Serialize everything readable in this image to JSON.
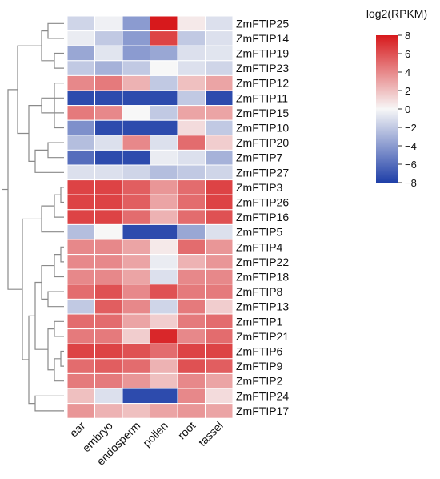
{
  "chart_data": {
    "type": "heatmap",
    "title": "",
    "color_scale": {
      "title": "log2(RPKM)",
      "range": [
        -8,
        8
      ],
      "ticks": [
        8,
        6,
        4,
        2,
        0,
        -2,
        -4,
        -6,
        -8
      ],
      "low_color": "#1f3fa8",
      "mid_color": "#f7f7f7",
      "high_color": "#d7191c"
    },
    "columns": [
      "ear",
      "embryo",
      "endosperm",
      "pollen",
      "root",
      "tassel"
    ],
    "rows": [
      "ZmFTIP25",
      "ZmFTIP14",
      "ZmFTIP19",
      "ZmFTIP23",
      "ZmFTIP12",
      "ZmFTIP11",
      "ZmFTIP15",
      "ZmFTIP10",
      "ZmFTIP20",
      "ZmFTIP7",
      "ZmFTIP27",
      "ZmFTIP3",
      "ZmFTIP26",
      "ZmFTIP16",
      "ZmFTIP5",
      "ZmFTIP4",
      "ZmFTIP22",
      "ZmFTIP18",
      "ZmFTIP8",
      "ZmFTIP13",
      "ZmFTIP1",
      "ZmFTIP21",
      "ZmFTIP6",
      "ZmFTIP9",
      "ZmFTIP2",
      "ZmFTIP24",
      "ZmFTIP17"
    ],
    "values": [
      [
        -1.5,
        -0.3,
        -4.0,
        8.0,
        0.5,
        -1.0
      ],
      [
        -0.5,
        -2.0,
        -4.0,
        6.5,
        -2.0,
        -1.0
      ],
      [
        -3.5,
        -0.8,
        -4.0,
        -3.5,
        -1.0,
        -0.8
      ],
      [
        -2.0,
        -3.0,
        -2.0,
        0.0,
        -1.0,
        -1.5
      ],
      [
        4.0,
        4.5,
        2.5,
        -2.0,
        2.0,
        3.0
      ],
      [
        -7.5,
        -7.5,
        -7.5,
        -7.5,
        -2.0,
        -7.5
      ],
      [
        4.5,
        4.0,
        0.0,
        -2.0,
        3.0,
        3.0
      ],
      [
        -4.5,
        -7.5,
        -7.5,
        -7.5,
        1.0,
        -2.0
      ],
      [
        -2.5,
        -1.0,
        4.0,
        -1.0,
        5.0,
        1.5
      ],
      [
        -6.0,
        -7.5,
        -7.5,
        -0.5,
        -1.0,
        -3.0
      ],
      [
        -1.0,
        -1.0,
        -1.5,
        -2.5,
        -2.0,
        -1.5
      ],
      [
        6.5,
        6.5,
        5.5,
        3.5,
        5.0,
        6.5
      ],
      [
        6.5,
        6.5,
        5.5,
        3.0,
        5.0,
        6.5
      ],
      [
        6.5,
        6.5,
        5.0,
        2.5,
        5.0,
        6.0
      ],
      [
        -2.5,
        0.0,
        -7.5,
        -7.5,
        -3.5,
        -1.0
      ],
      [
        4.0,
        4.0,
        3.0,
        0.5,
        5.0,
        3.5
      ],
      [
        4.0,
        4.0,
        3.0,
        -0.5,
        2.5,
        3.5
      ],
      [
        4.0,
        4.0,
        3.0,
        -1.0,
        4.0,
        4.0
      ],
      [
        5.0,
        6.0,
        4.0,
        6.0,
        4.5,
        4.5
      ],
      [
        -2.0,
        5.5,
        4.0,
        -1.5,
        4.5,
        1.5
      ],
      [
        5.0,
        5.0,
        3.0,
        1.5,
        4.5,
        5.0
      ],
      [
        4.5,
        4.5,
        1.5,
        7.5,
        4.0,
        5.0
      ],
      [
        6.5,
        6.5,
        6.0,
        5.0,
        6.5,
        6.5
      ],
      [
        5.0,
        5.5,
        5.0,
        2.5,
        6.0,
        5.5
      ],
      [
        4.5,
        4.5,
        3.5,
        2.0,
        4.0,
        3.0
      ],
      [
        2.0,
        -1.0,
        -7.5,
        -7.5,
        4.0,
        1.0
      ],
      [
        3.5,
        2.5,
        2.0,
        3.0,
        3.5,
        3.0
      ]
    ],
    "row_dendrogram": true,
    "grid": false,
    "legend_position": "top-right"
  }
}
